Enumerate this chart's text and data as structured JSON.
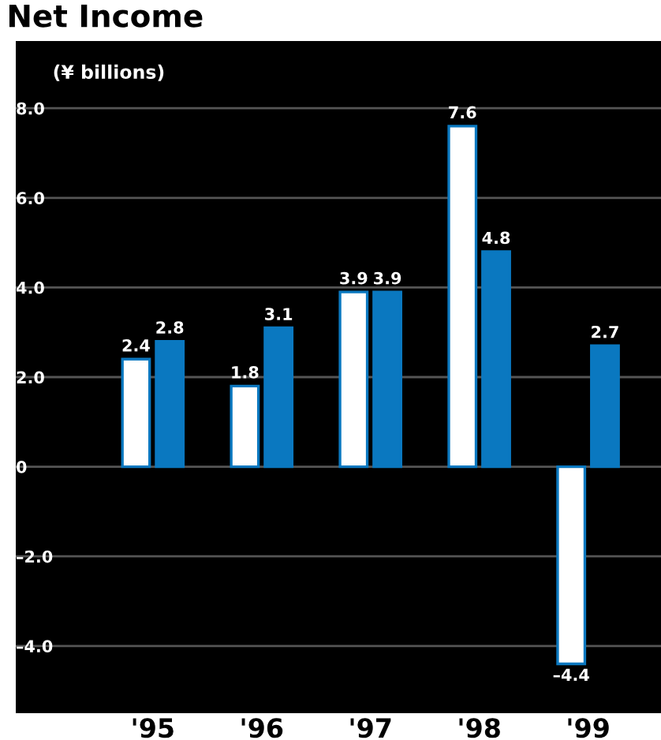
{
  "chart_data": {
    "type": "bar",
    "title": "Net Income",
    "ylabel": "(¥ billions)",
    "categories": [
      "'95",
      "'96",
      "'97",
      "'98",
      "'99"
    ],
    "series": [
      {
        "color": "#ffffff",
        "values": [
          2.4,
          1.8,
          3.9,
          7.6,
          -4.4
        ],
        "value_labels": [
          "2.4",
          "1.8",
          "3.9",
          "7.6",
          "–4.4"
        ]
      },
      {
        "color": "#0a78c0",
        "values": [
          2.8,
          3.1,
          3.9,
          4.8,
          2.7
        ],
        "value_labels": [
          "2.8",
          "3.1",
          "3.9",
          "4.8",
          "2.7"
        ]
      }
    ],
    "ylim": [
      -5.5,
      9.5
    ],
    "yticks": [
      {
        "value": 8,
        "label": "8.0"
      },
      {
        "value": 6,
        "label": "6.0"
      },
      {
        "value": 4,
        "label": "4.0"
      },
      {
        "value": 2,
        "label": "2.0"
      },
      0,
      {
        "value": -2,
        "label": "–2.0"
      },
      {
        "value": -4,
        "label": "–4.0"
      }
    ],
    "grid": "y"
  }
}
